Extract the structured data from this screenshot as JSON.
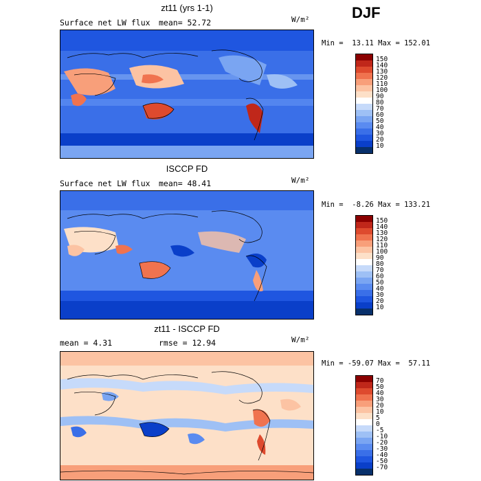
{
  "season_label": "DJF",
  "panels": [
    {
      "title": "zt11 (yrs 1-1)",
      "subtitle_left": "Surface net LW flux",
      "subtitle_mid": "mean=  52.72",
      "units": "W/m²",
      "minmax": "Min =  13.11 Max = 152.01",
      "scale_colors": [
        "#08306b",
        "#0a3fc9",
        "#1f56e0",
        "#3a6fe8",
        "#5a8bf0",
        "#7aa5f2",
        "#9ec0f5",
        "#c6dafa",
        "#ffffff",
        "#fde0c8",
        "#fcc3a3",
        "#f89f7a",
        "#f0734f",
        "#de4a2e",
        "#c0271a",
        "#8b0000"
      ],
      "scale_labels": [
        "150",
        "140",
        "130",
        "120",
        "110",
        "100",
        "90",
        "80",
        "70",
        "60",
        "50",
        "40",
        "30",
        "20",
        "10"
      ]
    },
    {
      "title": "ISCCP FD",
      "subtitle_left": "Surface net LW flux",
      "subtitle_mid": "mean=  48.41",
      "units": "W/m²",
      "minmax": "Min =  -8.26 Max = 133.21",
      "scale_colors": [
        "#08306b",
        "#0a3fc9",
        "#1f56e0",
        "#3a6fe8",
        "#5a8bf0",
        "#7aa5f2",
        "#9ec0f5",
        "#c6dafa",
        "#ffffff",
        "#fde0c8",
        "#fcc3a3",
        "#f89f7a",
        "#f0734f",
        "#de4a2e",
        "#c0271a",
        "#8b0000"
      ],
      "scale_labels": [
        "150",
        "140",
        "130",
        "120",
        "110",
        "100",
        "90",
        "80",
        "70",
        "60",
        "50",
        "40",
        "30",
        "20",
        "10"
      ]
    },
    {
      "title": "zt11 - ISCCP FD",
      "subtitle_left": "mean =   4.31",
      "subtitle_mid": "rmse =  12.94",
      "units": "W/m²",
      "minmax": "Min = -59.07 Max =  57.11",
      "scale_colors": [
        "#08306b",
        "#0a3fc9",
        "#1f56e0",
        "#3a6fe8",
        "#5a8bf0",
        "#7aa5f2",
        "#9ec0f5",
        "#c6dafa",
        "#ffffff",
        "#fde0c8",
        "#fcc3a3",
        "#f89f7a",
        "#f0734f",
        "#de4a2e",
        "#c0271a",
        "#8b0000"
      ],
      "scale_labels": [
        "70",
        "50",
        "40",
        "30",
        "20",
        "10",
        "5",
        "0",
        "-5",
        "-10",
        "-20",
        "-30",
        "-40",
        "-50",
        "-70"
      ]
    }
  ]
}
